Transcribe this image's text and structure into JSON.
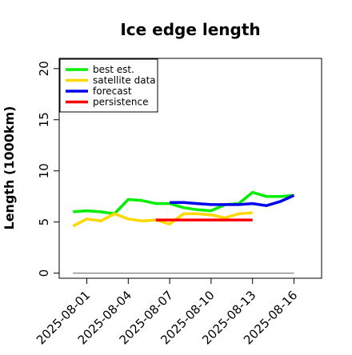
{
  "chart_data": {
    "type": "line",
    "title": "Ice edge length",
    "xlabel": "",
    "ylabel": "Length (1000km)",
    "ylim": [
      -0.5,
      21
    ],
    "xlim": [
      "2025-07-30",
      "2025-08-18"
    ],
    "y_ticks": [
      0,
      5,
      10,
      15,
      20
    ],
    "x_ticks": [
      {
        "date": "2025-08-01",
        "label": "2025-08-01",
        "color": "#000000"
      },
      {
        "date": "2025-08-04",
        "label": "2025-08-04",
        "color": "#000000"
      },
      {
        "date": "2025-08-07",
        "label": "2025-08-07",
        "color": "#228B22"
      },
      {
        "date": "2025-08-10",
        "label": "2025-08-10",
        "color": "#000000"
      },
      {
        "date": "2025-08-13",
        "label": "2025-08-13",
        "color": "#000000"
      },
      {
        "date": "2025-08-16",
        "label": "2025-08-16",
        "color": "#000000"
      }
    ],
    "grid": false,
    "legend_position": "top-left",
    "series": [
      {
        "name": "best est.",
        "color": "#00ee00",
        "x": [
          "2025-07-31",
          "2025-08-01",
          "2025-08-02",
          "2025-08-03",
          "2025-08-04",
          "2025-08-05",
          "2025-08-06",
          "2025-08-07",
          "2025-08-08",
          "2025-08-09",
          "2025-08-10",
          "2025-08-11",
          "2025-08-12",
          "2025-08-13",
          "2025-08-14",
          "2025-08-15",
          "2025-08-16"
        ],
        "y": [
          6.0,
          6.1,
          6.0,
          5.8,
          7.2,
          7.1,
          6.8,
          6.8,
          6.4,
          6.2,
          6.1,
          6.7,
          6.8,
          7.9,
          7.5,
          7.5,
          7.6
        ]
      },
      {
        "name": "satellite data",
        "color": "#ffd700",
        "x": [
          "2025-07-31",
          "2025-08-01",
          "2025-08-02",
          "2025-08-03",
          "2025-08-04",
          "2025-08-05",
          "2025-08-06",
          "2025-08-07",
          "2025-08-08",
          "2025-08-09",
          "2025-08-10",
          "2025-08-11",
          "2025-08-12",
          "2025-08-13"
        ],
        "y": [
          4.6,
          5.3,
          5.1,
          5.8,
          5.3,
          5.1,
          5.2,
          4.8,
          5.8,
          5.8,
          5.7,
          5.4,
          5.8,
          5.9
        ]
      },
      {
        "name": "forecast",
        "color": "#0000ee",
        "x": [
          "2025-08-07",
          "2025-08-08",
          "2025-08-09",
          "2025-08-10",
          "2025-08-11",
          "2025-08-12",
          "2025-08-13",
          "2025-08-14",
          "2025-08-15",
          "2025-08-16"
        ],
        "y": [
          6.9,
          6.9,
          6.8,
          6.7,
          6.7,
          6.7,
          6.8,
          6.6,
          7.0,
          7.6
        ]
      },
      {
        "name": "persistence",
        "color": "#ff0000",
        "x": [
          "2025-08-06",
          "2025-08-07",
          "2025-08-08",
          "2025-08-09",
          "2025-08-10",
          "2025-08-11",
          "2025-08-12",
          "2025-08-13"
        ],
        "y": [
          5.2,
          5.2,
          5.2,
          5.2,
          5.2,
          5.2,
          5.2,
          5.2
        ]
      }
    ],
    "reference_line": {
      "x": [
        "2025-07-31",
        "2025-08-16"
      ],
      "y": 0,
      "color": "#808080"
    }
  }
}
